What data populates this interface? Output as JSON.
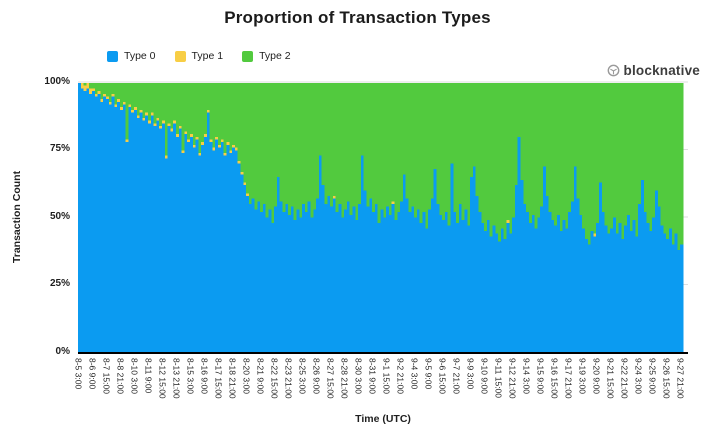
{
  "title": "Proportion of Transaction Types",
  "brand": {
    "name": "blocknative",
    "icon": "blocknative-cube-icon",
    "text_color": "#3e3e3e",
    "icon_color": "#9a9a9a"
  },
  "legend": {
    "position": "top-left",
    "items": [
      "Type 0",
      "Type 1",
      "Type 2"
    ]
  },
  "colors": {
    "type0": "#0b9bf1",
    "type1": "#f8ce45",
    "type2": "#52ca3e",
    "gridline": "#dedede",
    "axis_line": "#000000",
    "text": "#1e1e1e"
  },
  "chart_data": {
    "type": "bar",
    "subtype": "100%-stacked-bars, 6-hour bins, 5 bars per labeled tick",
    "title": "Proportion of Transaction Types",
    "xlabel": "Time (UTC)",
    "ylabel": "Transaction Count",
    "ylim": [
      0,
      100
    ],
    "grid": "horizontal, light gray at 25% steps",
    "legend_position": "top-left",
    "y_tick_labels": [
      "100%",
      "75%",
      "50%",
      "25%",
      "0%"
    ],
    "x_tick_labels": [
      "8-5 3:00",
      "8-6 9:00",
      "8-7 15:00",
      "8-8 21:00",
      "8-10 3:00",
      "8-11 9:00",
      "8-12 15:00",
      "8-13 21:00",
      "8-15 3:00",
      "8-16 9:00",
      "8-17 15:00",
      "8-18 21:00",
      "8-20 3:00",
      "8-21 9:00",
      "8-22 15:00",
      "8-23 21:00",
      "8-25 3:00",
      "8-26 9:00",
      "8-27 15:00",
      "8-28 21:00",
      "8-30 3:00",
      "8-31 9:00",
      "9-1 15:00",
      "9-2 21:00",
      "9-4 3:00",
      "9-5 9:00",
      "9-6 15:00",
      "9-7 21:00",
      "9-9 3:00",
      "9-10 9:00",
      "9-11 15:00",
      "9-12 21:00",
      "9-14 3:00",
      "9-15 9:00",
      "9-16 15:00",
      "9-17 21:00",
      "9-19 3:00",
      "9-20 9:00",
      "9-21 15:00",
      "9-22 21:00",
      "9-24 3:00",
      "9-25 9:00",
      "9-26 15:00",
      "9-27 21:00"
    ],
    "series": [
      {
        "name": "Type 0",
        "color": "#0b9bf1",
        "unit": "% of transactions",
        "values": [
          100,
          98,
          97,
          98,
          96,
          97,
          95,
          96,
          93,
          95,
          94,
          92,
          95,
          91,
          93,
          90,
          92,
          78,
          91,
          89,
          90,
          87,
          89,
          86,
          88,
          85,
          88,
          84,
          86,
          83,
          85,
          72,
          84,
          82,
          85,
          80,
          83,
          74,
          81,
          78,
          80,
          76,
          79,
          73,
          77,
          80,
          89,
          78,
          75,
          79,
          76,
          78,
          73,
          77,
          74,
          76,
          75,
          70,
          66,
          62,
          58,
          55,
          57,
          53,
          56,
          52,
          55,
          50,
          53,
          48,
          54,
          65,
          56,
          52,
          55,
          51,
          54,
          49,
          53,
          50,
          55,
          52,
          56,
          50,
          53,
          57,
          73,
          62,
          55,
          58,
          54,
          57,
          52,
          55,
          50,
          53,
          56,
          51,
          54,
          49,
          55,
          73,
          60,
          54,
          57,
          52,
          55,
          48,
          53,
          50,
          54,
          51,
          55,
          49,
          52,
          56,
          66,
          57,
          52,
          54,
          50,
          53,
          48,
          52,
          46,
          53,
          57,
          68,
          55,
          51,
          49,
          52,
          47,
          70,
          52,
          48,
          55,
          49,
          53,
          47,
          65,
          69,
          58,
          52,
          48,
          45,
          49,
          43,
          47,
          44,
          41,
          46,
          42,
          48,
          44,
          50,
          62,
          80,
          64,
          55,
          52,
          48,
          51,
          46,
          50,
          54,
          69,
          58,
          52,
          49,
          47,
          51,
          45,
          49,
          46,
          52,
          56,
          69,
          57,
          51,
          46,
          42,
          40,
          45,
          43,
          48,
          63,
          52,
          47,
          44,
          46,
          50,
          44,
          48,
          42,
          47,
          51,
          45,
          49,
          43,
          55,
          64,
          52,
          48,
          45,
          50,
          60,
          54,
          47,
          44,
          42,
          46,
          40,
          44,
          38,
          40
        ]
      },
      {
        "name": "Type 1",
        "color": "#f8ce45",
        "unit": "% of transactions",
        "values_rle": [
          [
            5,
            2
          ],
          [
            56,
            1
          ],
          [
            30,
            0
          ],
          [
            1,
            1
          ],
          [
            20,
            0
          ],
          [
            1,
            1
          ],
          [
            40,
            0
          ],
          [
            1,
            1
          ],
          [
            30,
            0
          ],
          [
            1,
            1
          ],
          [
            31,
            0
          ]
        ]
      },
      {
        "name": "Type 2",
        "color": "#52ca3e",
        "unit": "% of transactions",
        "values_note": "remainder to 100% above Type 0 + Type 1"
      }
    ]
  }
}
